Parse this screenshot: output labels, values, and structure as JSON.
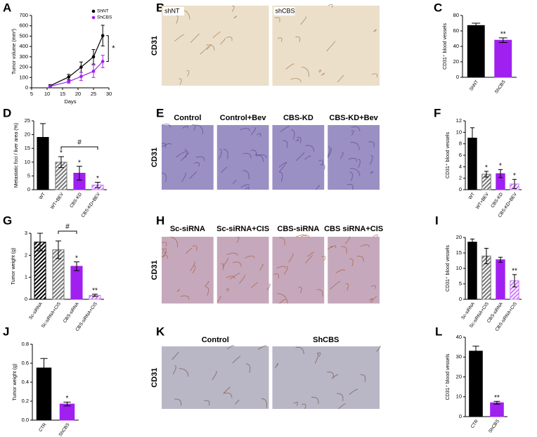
{
  "chart_data": [
    {
      "type": "line",
      "panel": "A",
      "ylabel": "Tumor volume (mm³)",
      "xlabel": "Days",
      "x": [
        11,
        17,
        21,
        25,
        28
      ],
      "series": [
        {
          "name": "ShNT",
          "color": "#000000",
          "values": [
            20,
            105,
            200,
            300,
            505
          ],
          "errors": [
            10,
            25,
            50,
            70,
            100
          ]
        },
        {
          "name": "ShCBS",
          "color": "#a020f0",
          "values": [
            15,
            60,
            110,
            160,
            255
          ],
          "errors": [
            5,
            15,
            40,
            60,
            60
          ]
        }
      ],
      "xlim": [
        5,
        30
      ],
      "xticks": [
        5,
        10,
        15,
        20,
        25,
        30
      ],
      "ylim": [
        0,
        700
      ],
      "yticks": [
        0,
        100,
        200,
        300,
        400,
        500,
        600,
        700
      ],
      "annotation": "*"
    },
    {
      "type": "bar",
      "panel": "C",
      "ylabel": "CD31⁺ blood vessels",
      "categories": [
        "ShNT",
        "ShCBS"
      ],
      "values": [
        67,
        48
      ],
      "errors": [
        3,
        3
      ],
      "colors": [
        "#000000",
        "#a020f0"
      ],
      "hatched": [
        false,
        false
      ],
      "annotations": [
        null,
        "**"
      ],
      "ylim": [
        0,
        80
      ],
      "yticks": [
        0,
        20,
        40,
        60,
        80
      ]
    },
    {
      "type": "bar",
      "panel": "D",
      "ylabel": "Metastatic foci / liver area (%)",
      "categories": [
        "WT",
        "WT+BEV",
        "CBS-KD",
        "CBS-KD+BEV"
      ],
      "values": [
        19,
        10,
        6,
        1.7
      ],
      "errors": [
        5,
        2,
        2.5,
        1
      ],
      "colors": [
        "#000000",
        "#777777",
        "#a020f0",
        "#d07cff"
      ],
      "hatched": [
        false,
        true,
        false,
        true
      ],
      "annotations": [
        null,
        "*",
        "*",
        "*"
      ],
      "bracket": {
        "between": [
          "WT+BEV",
          "CBS-KD+BEV"
        ],
        "label": "#"
      },
      "ylim": [
        0,
        25
      ],
      "yticks": [
        0,
        5,
        10,
        15,
        20,
        25
      ]
    },
    {
      "type": "bar",
      "panel": "F",
      "ylabel": "CD31⁺ blood vessels",
      "categories": [
        "WT",
        "WT+BEV",
        "CBS-KD",
        "CBS-KD+BEV"
      ],
      "values": [
        9,
        2.7,
        2.8,
        1
      ],
      "errors": [
        1.8,
        0.5,
        0.7,
        0.8
      ],
      "colors": [
        "#000000",
        "#777777",
        "#a020f0",
        "#d07cff"
      ],
      "hatched": [
        false,
        true,
        false,
        true
      ],
      "annotations": [
        null,
        "*",
        "*",
        "*"
      ],
      "ylim": [
        0,
        12
      ],
      "yticks": [
        0,
        2,
        4,
        6,
        8,
        10,
        12
      ]
    },
    {
      "type": "bar",
      "panel": "G",
      "ylabel": "Tumor weight (g)",
      "categories": [
        "Sc-siRNA",
        "Sc-siRNA+CIS",
        "CBS-siRNA",
        "CBS-siRNA+CIS"
      ],
      "values": [
        2.6,
        2.25,
        1.5,
        0.18
      ],
      "errors": [
        0.4,
        0.4,
        0.2,
        0.05
      ],
      "colors": [
        "#000000",
        "#777777",
        "#a020f0",
        "#d07cff"
      ],
      "hatched": [
        true,
        true,
        false,
        true
      ],
      "annotations": [
        null,
        null,
        "*",
        "**"
      ],
      "bracket": {
        "between": [
          "Sc-siRNA+CIS",
          "CBS-siRNA"
        ],
        "label": "#"
      },
      "ylim": [
        0,
        3
      ],
      "yticks": [
        0,
        1,
        2,
        3
      ]
    },
    {
      "type": "bar",
      "panel": "I",
      "ylabel": "CD31⁺ blood vessels",
      "categories": [
        "Sc-siRNA",
        "Sc-siRNA+CIS",
        "CBS-siRNA",
        "CBS-siRNA+CIS"
      ],
      "values": [
        18.5,
        14,
        12.8,
        6
      ],
      "errors": [
        1,
        2.5,
        0.8,
        2
      ],
      "colors": [
        "#000000",
        "#777777",
        "#a020f0",
        "#d07cff"
      ],
      "hatched": [
        false,
        true,
        false,
        true
      ],
      "annotations": [
        null,
        null,
        null,
        "**"
      ],
      "ylim": [
        0,
        20
      ],
      "yticks": [
        0,
        5,
        10,
        15,
        20
      ]
    },
    {
      "type": "bar",
      "panel": "J",
      "ylabel": "Tumor weight (g)",
      "categories": [
        "CTR",
        "ShCBS"
      ],
      "values": [
        0.55,
        0.17
      ],
      "errors": [
        0.1,
        0.02
      ],
      "colors": [
        "#000000",
        "#a020f0"
      ],
      "hatched": [
        false,
        false
      ],
      "annotations": [
        null,
        "*"
      ],
      "ylim": [
        0,
        0.8
      ],
      "yticks": [
        {
          "value": 0,
          "label": "0.0"
        },
        0.2,
        0.4,
        0.6,
        0.8
      ]
    },
    {
      "type": "bar",
      "panel": "L",
      "ylabel": "CD31⁺ blood vessels",
      "categories": [
        "CTR",
        "ShCBS"
      ],
      "values": [
        33,
        7
      ],
      "errors": [
        2.5,
        0.7
      ],
      "colors": [
        "#000000",
        "#a020f0"
      ],
      "hatched": [
        false,
        false
      ],
      "annotations": [
        null,
        "**"
      ],
      "ylim": [
        0,
        40
      ],
      "yticks": [
        0,
        10,
        20,
        30,
        40
      ]
    }
  ],
  "micrographs": [
    {
      "panel": "B",
      "ylabel": "CD31",
      "labels": [
        "shNT",
        "shCBS"
      ]
    },
    {
      "panel": "E",
      "ylabel": "CD31",
      "labels": [
        "Control",
        "Control+Bev",
        "CBS-KD",
        "CBS-KD+Bev"
      ]
    },
    {
      "panel": "H",
      "ylabel": "CD31",
      "labels": [
        "Sc-siRNA",
        "Sc-siRNA+CIS",
        "CBS-siRNA",
        "CBS siRNA+CIS"
      ]
    },
    {
      "panel": "K",
      "ylabel": "CD31",
      "labels": [
        "Control",
        "ShCBS"
      ]
    }
  ]
}
